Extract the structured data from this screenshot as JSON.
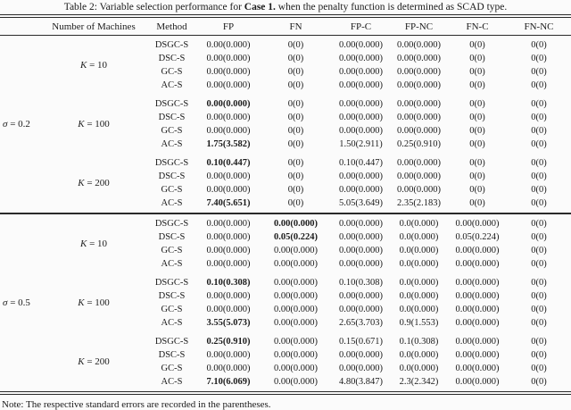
{
  "title": {
    "prefix": "Table 2: Variable selection performance for ",
    "bold": "Case 1.",
    "suffix": " when the penalty function is determined as SCAD type."
  },
  "columns": [
    "Number of Machines",
    "Method",
    "FP",
    "FN",
    "FP-C",
    "FP-NC",
    "FN-C",
    "FN-NC"
  ],
  "note": "Note: The respective standard errors are recorded in the parentheses.",
  "sections": [
    {
      "sigma": {
        "symbol": "σ",
        "rest": "= 0.2"
      },
      "blocks": [
        {
          "k": {
            "symbol": "K",
            "rest": "= 10"
          },
          "rows": [
            {
              "method": "DSGC-S",
              "values": [
                "0.00(0.000)",
                "0(0)",
                "0.00(0.000)",
                "0.00(0.000)",
                "0(0)",
                "0(0)"
              ],
              "bold": []
            },
            {
              "method": "DSC-S",
              "values": [
                "0.00(0.000)",
                "0(0)",
                "0.00(0.000)",
                "0.00(0.000)",
                "0(0)",
                "0(0)"
              ],
              "bold": []
            },
            {
              "method": "GC-S",
              "values": [
                "0.00(0.000)",
                "0(0)",
                "0.00(0.000)",
                "0.00(0.000)",
                "0(0)",
                "0(0)"
              ],
              "bold": []
            },
            {
              "method": "AC-S",
              "values": [
                "0.00(0.000)",
                "0(0)",
                "0.00(0.000)",
                "0.00(0.000)",
                "0(0)",
                "0(0)"
              ],
              "bold": []
            }
          ]
        },
        {
          "k": {
            "symbol": "K",
            "rest": "= 100"
          },
          "rows": [
            {
              "method": "DSGC-S",
              "values": [
                "0.00(0.000)",
                "0(0)",
                "0.00(0.000)",
                "0.00(0.000)",
                "0(0)",
                "0(0)"
              ],
              "bold": [
                0
              ]
            },
            {
              "method": "DSC-S",
              "values": [
                "0.00(0.000)",
                "0(0)",
                "0.00(0.000)",
                "0.00(0.000)",
                "0(0)",
                "0(0)"
              ],
              "bold": []
            },
            {
              "method": "GC-S",
              "values": [
                "0.00(0.000)",
                "0(0)",
                "0.00(0.000)",
                "0.00(0.000)",
                "0(0)",
                "0(0)"
              ],
              "bold": []
            },
            {
              "method": "AC-S",
              "values": [
                "1.75(3.582)",
                "0(0)",
                "1.50(2.911)",
                "0.25(0.910)",
                "0(0)",
                "0(0)"
              ],
              "bold": [
                0
              ]
            }
          ]
        },
        {
          "k": {
            "symbol": "K",
            "rest": "= 200"
          },
          "rows": [
            {
              "method": "DSGC-S",
              "values": [
                "0.10(0.447)",
                "0(0)",
                "0.10(0.447)",
                "0.00(0.000)",
                "0(0)",
                "0(0)"
              ],
              "bold": [
                0
              ]
            },
            {
              "method": "DSC-S",
              "values": [
                "0.00(0.000)",
                "0(0)",
                "0.00(0.000)",
                "0.00(0.000)",
                "0(0)",
                "0(0)"
              ],
              "bold": []
            },
            {
              "method": "GC-S",
              "values": [
                "0.00(0.000)",
                "0(0)",
                "0.00(0.000)",
                "0.00(0.000)",
                "0(0)",
                "0(0)"
              ],
              "bold": []
            },
            {
              "method": "AC-S",
              "values": [
                "7.40(5.651)",
                "0(0)",
                "5.05(3.649)",
                "2.35(2.183)",
                "0(0)",
                "0(0)"
              ],
              "bold": [
                0
              ]
            }
          ]
        }
      ]
    },
    {
      "sigma": {
        "symbol": "σ",
        "rest": "= 0.5"
      },
      "blocks": [
        {
          "k": {
            "symbol": "K",
            "rest": "= 10"
          },
          "rows": [
            {
              "method": "DSGC-S",
              "values": [
                "0.00(0.000)",
                "0.00(0.000)",
                "0.00(0.000)",
                "0.0(0.000)",
                "0.00(0.000)",
                "0(0)"
              ],
              "bold": [
                1
              ]
            },
            {
              "method": "DSC-S",
              "values": [
                "0.00(0.000)",
                "0.05(0.224)",
                "0.00(0.000)",
                "0.0(0.000)",
                "0.05(0.224)",
                "0(0)"
              ],
              "bold": [
                1
              ]
            },
            {
              "method": "GC-S",
              "values": [
                "0.00(0.000)",
                "0.00(0.000)",
                "0.00(0.000)",
                "0.0(0.000)",
                "0.00(0.000)",
                "0(0)"
              ],
              "bold": []
            },
            {
              "method": "AC-S",
              "values": [
                "0.00(0.000)",
                "0.00(0.000)",
                "0.00(0.000)",
                "0.0(0.000)",
                "0.00(0.000)",
                "0(0)"
              ],
              "bold": []
            }
          ]
        },
        {
          "k": {
            "symbol": "K",
            "rest": "= 100"
          },
          "rows": [
            {
              "method": "DSGC-S",
              "values": [
                "0.10(0.308)",
                "0.00(0.000)",
                "0.10(0.308)",
                "0.0(0.000)",
                "0.00(0.000)",
                "0(0)"
              ],
              "bold": [
                0
              ]
            },
            {
              "method": "DSC-S",
              "values": [
                "0.00(0.000)",
                "0.00(0.000)",
                "0.00(0.000)",
                "0.0(0.000)",
                "0.00(0.000)",
                "0(0)"
              ],
              "bold": []
            },
            {
              "method": "GC-S",
              "values": [
                "0.00(0.000)",
                "0.00(0.000)",
                "0.00(0.000)",
                "0.0(0.000)",
                "0.00(0.000)",
                "0(0)"
              ],
              "bold": []
            },
            {
              "method": "AC-S",
              "values": [
                "3.55(5.073)",
                "0.00(0.000)",
                "2.65(3.703)",
                "0.9(1.553)",
                "0.00(0.000)",
                "0(0)"
              ],
              "bold": [
                0
              ]
            }
          ]
        },
        {
          "k": {
            "symbol": "K",
            "rest": "= 200"
          },
          "rows": [
            {
              "method": "DSGC-S",
              "values": [
                "0.25(0.910)",
                "0.00(0.000)",
                "0.15(0.671)",
                "0.1(0.308)",
                "0.00(0.000)",
                "0(0)"
              ],
              "bold": [
                0
              ]
            },
            {
              "method": "DSC-S",
              "values": [
                "0.00(0.000)",
                "0.00(0.000)",
                "0.00(0.000)",
                "0.0(0.000)",
                "0.00(0.000)",
                "0(0)"
              ],
              "bold": []
            },
            {
              "method": "GC-S",
              "values": [
                "0.00(0.000)",
                "0.00(0.000)",
                "0.00(0.000)",
                "0.0(0.000)",
                "0.00(0.000)",
                "0(0)"
              ],
              "bold": []
            },
            {
              "method": "AC-S",
              "values": [
                "7.10(6.069)",
                "0.00(0.000)",
                "4.80(3.847)",
                "2.3(2.342)",
                "0.00(0.000)",
                "0(0)"
              ],
              "bold": [
                0
              ]
            }
          ]
        }
      ]
    }
  ]
}
